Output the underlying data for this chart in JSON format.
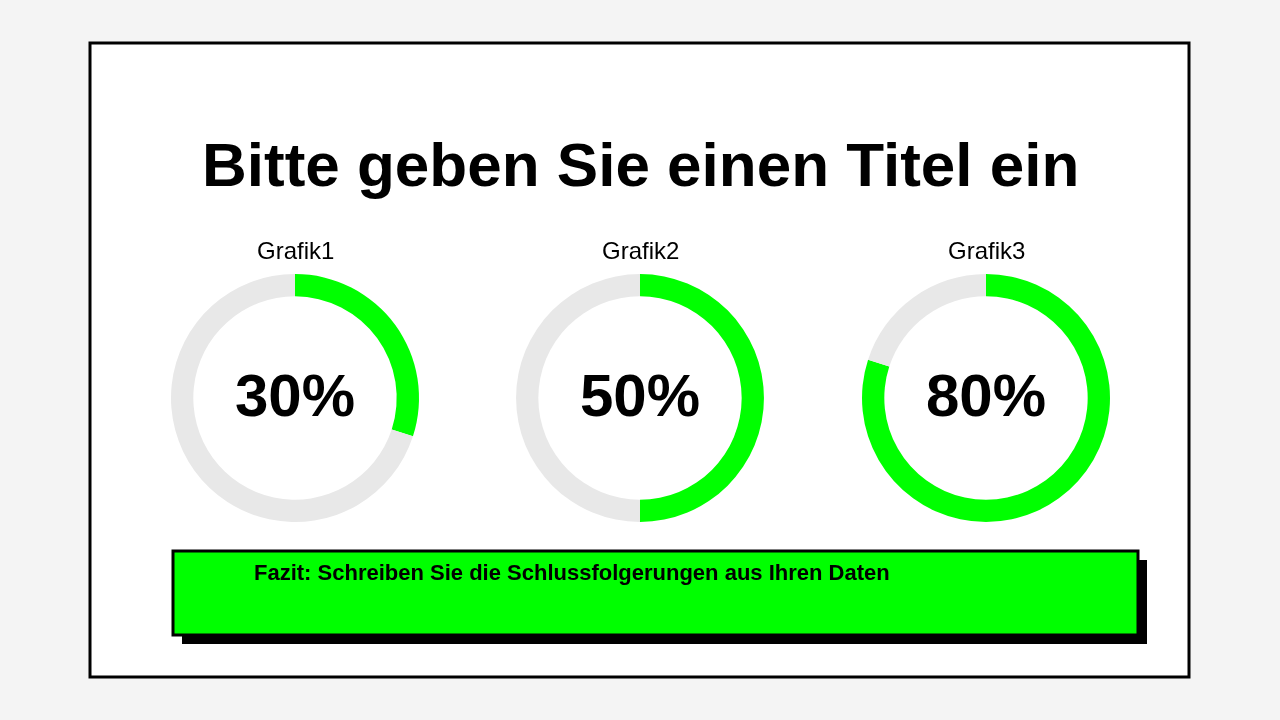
{
  "chart_data": [
    {
      "type": "other",
      "title": "Bitte geben Sie einen Titel ein",
      "annotations": [
        "Fazit: Schreiben Sie die Schlussfolgerungen aus Ihren Daten"
      ]
    },
    {
      "type": "donut",
      "title": "Grafik1",
      "categories": [
        null,
        null
      ],
      "values": [
        30,
        70
      ],
      "colors": [
        "#00ff00",
        "#e8e8e8"
      ],
      "value_labels": [
        "30%",
        null
      ]
    },
    {
      "type": "donut",
      "title": "Grafik2",
      "categories": [
        null,
        null
      ],
      "values": [
        50,
        50
      ],
      "colors": [
        "#00ff00",
        "#e8e8e8"
      ],
      "value_labels": [
        "50%",
        null
      ]
    },
    {
      "type": "donut",
      "title": "Grafik3",
      "categories": [
        null,
        null
      ],
      "values": [
        80,
        20
      ],
      "colors": [
        "#00ff00",
        "#e8e8e8"
      ],
      "value_labels": [
        "80%",
        null
      ]
    }
  ]
}
